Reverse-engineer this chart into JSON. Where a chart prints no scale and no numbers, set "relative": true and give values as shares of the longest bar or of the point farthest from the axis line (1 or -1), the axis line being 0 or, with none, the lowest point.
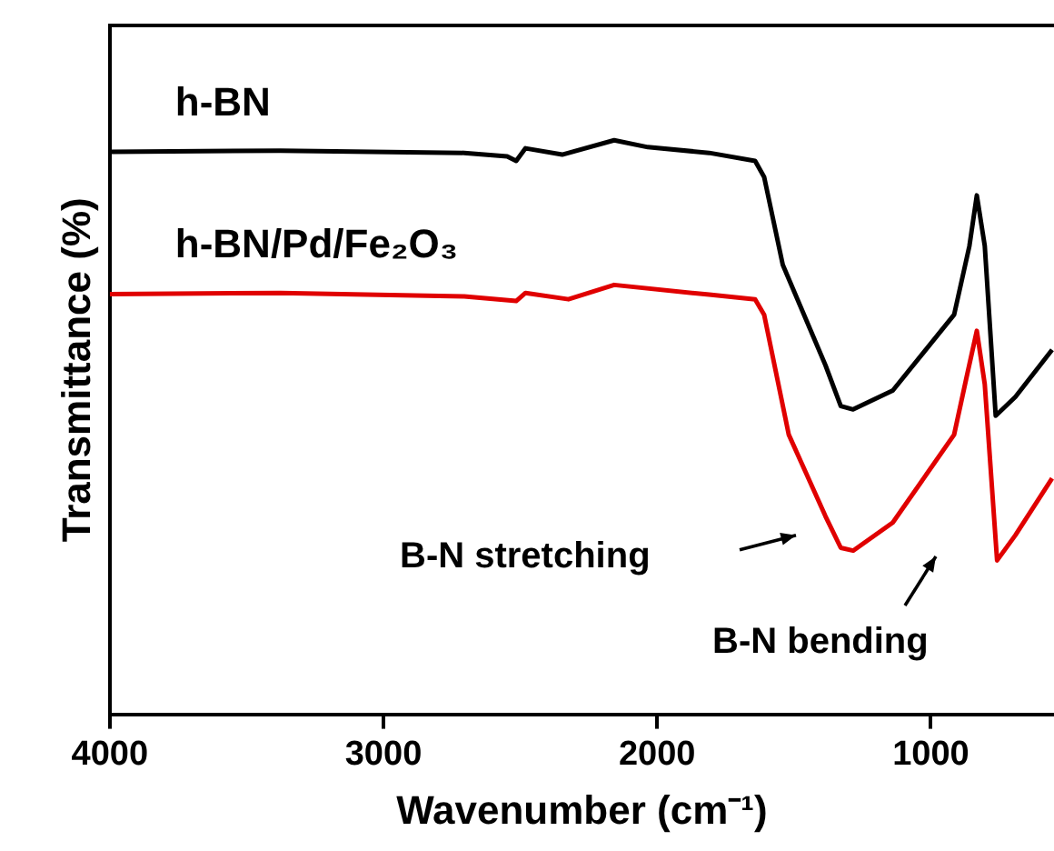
{
  "chart_data": {
    "type": "line",
    "relative": true,
    "xlabel": "Wavenumber (cm⁻¹)",
    "ylabel": "Transmittance (%)",
    "xlim": [
      4000,
      550
    ],
    "xticks": [
      4000,
      3000,
      2000,
      1000
    ],
    "grid": false,
    "legend": false,
    "marker": "none",
    "line_style": "solid",
    "annotations": [
      "B-N stretching",
      "B-N bending"
    ],
    "series": [
      {
        "name": "h-BN",
        "color": "#000000",
        "x": [
          4000,
          3376,
          2705,
          2548,
          2515,
          2481,
          2347,
          2157,
          2034,
          1810,
          1642,
          1609,
          1541,
          1385,
          1329,
          1284,
          1139,
          915,
          859,
          832,
          803,
          763,
          691,
          557
        ],
        "values": [
          0.98,
          0.982,
          0.978,
          0.972,
          0.964,
          0.986,
          0.975,
          1.0,
          0.988,
          0.978,
          0.964,
          0.936,
          0.783,
          0.608,
          0.537,
          0.531,
          0.564,
          0.696,
          0.816,
          0.904,
          0.816,
          0.52,
          0.553,
          0.635
        ]
      },
      {
        "name": "h-BN/Pd/Fe₂O₃",
        "color": "#e00000",
        "x": [
          4000,
          3376,
          2705,
          2515,
          2481,
          2324,
          2157,
          1810,
          1642,
          1609,
          1519,
          1385,
          1329,
          1284,
          1139,
          915,
          870,
          832,
          803,
          758,
          691,
          557
        ],
        "values": [
          0.732,
          0.734,
          0.728,
          0.72,
          0.734,
          0.723,
          0.748,
          0.731,
          0.723,
          0.696,
          0.487,
          0.345,
          0.29,
          0.285,
          0.334,
          0.487,
          0.586,
          0.668,
          0.575,
          0.268,
          0.312,
          0.411
        ]
      }
    ]
  }
}
